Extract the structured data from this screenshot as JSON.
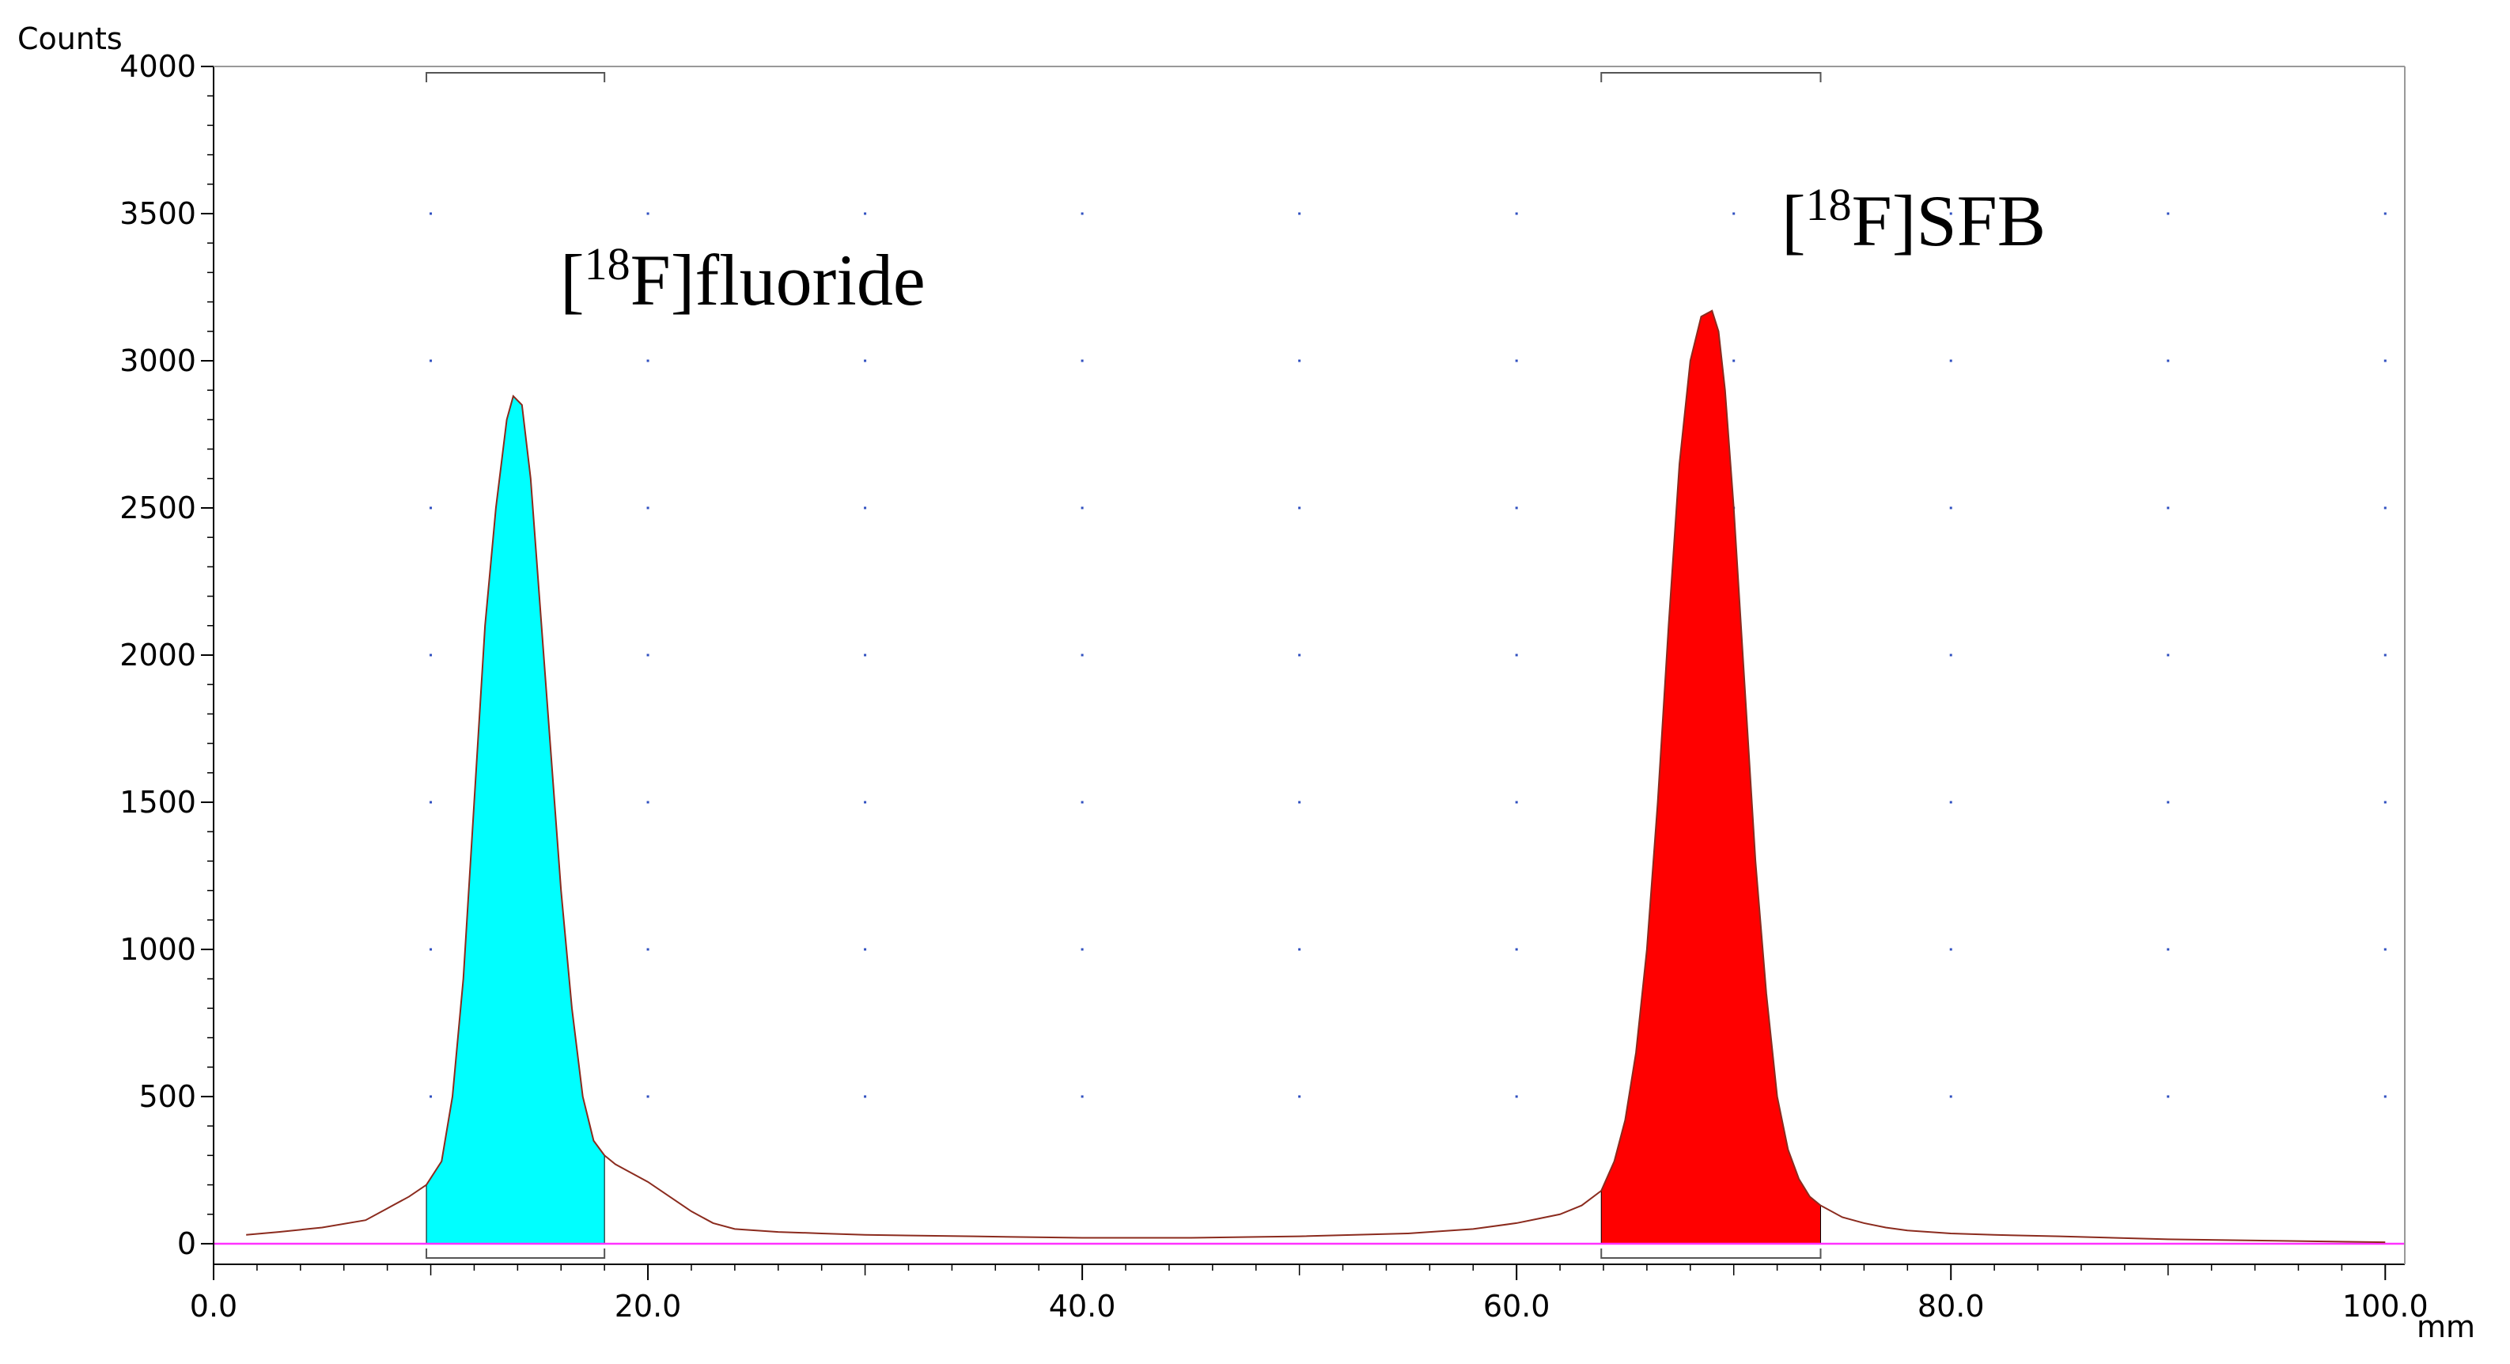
{
  "chart_data": {
    "type": "area",
    "title": "",
    "xlabel": "mm",
    "ylabel": "Counts",
    "xlim": [
      0,
      100.9
    ],
    "ylim": [
      -70,
      4000
    ],
    "x_ticks": [
      0.0,
      20.0,
      40.0,
      60.0,
      80.0,
      100.0
    ],
    "x_tick_labels": [
      "0.0",
      "20.0",
      "40.0",
      "60.0",
      "80.0",
      "100.0"
    ],
    "y_ticks": [
      0,
      500,
      1000,
      1500,
      2000,
      2500,
      3000,
      3500,
      4000
    ],
    "y_tick_labels": [
      "0",
      "500",
      "1000",
      "1500",
      "2000",
      "2500",
      "3000",
      "3500",
      "4000"
    ],
    "grid": "dotted",
    "colors": {
      "trace": "#8b2b1e",
      "baseline": "#ff33ff",
      "peak1": "#00ffff",
      "peak2": "#ff0000",
      "axis": "#000000",
      "grid": "#3050c0"
    },
    "trace": {
      "x": [
        1.5,
        3,
        5,
        7,
        8,
        9,
        9.8,
        10.5,
        11,
        11.5,
        12,
        12.5,
        13,
        13.5,
        13.8,
        14.2,
        14.6,
        15,
        15.5,
        16,
        16.5,
        17,
        17.5,
        18,
        18.5,
        19,
        20,
        21,
        22,
        23,
        24,
        26,
        28,
        30,
        35,
        40,
        45,
        50,
        55,
        58,
        60,
        61,
        62,
        63,
        63.9,
        64.5,
        65,
        65.5,
        66,
        66.5,
        67,
        67.5,
        68,
        68.5,
        69,
        69.3,
        69.6,
        70,
        70.5,
        71,
        71.5,
        72,
        72.5,
        73,
        73.5,
        74,
        75,
        76,
        77,
        78,
        80,
        82,
        85,
        90,
        95,
        100
      ],
      "y": [
        30,
        40,
        55,
        80,
        120,
        160,
        200,
        280,
        500,
        900,
        1500,
        2100,
        2500,
        2800,
        2880,
        2850,
        2600,
        2200,
        1700,
        1200,
        800,
        500,
        350,
        300,
        270,
        250,
        210,
        160,
        110,
        70,
        50,
        40,
        35,
        30,
        25,
        20,
        20,
        25,
        35,
        50,
        70,
        85,
        100,
        130,
        180,
        280,
        420,
        650,
        1000,
        1500,
        2100,
        2650,
        3000,
        3150,
        3170,
        3100,
        2900,
        2500,
        1900,
        1300,
        850,
        500,
        320,
        220,
        160,
        130,
        90,
        70,
        55,
        45,
        35,
        30,
        25,
        15,
        10,
        5
      ]
    },
    "series": [
      {
        "name": "[18F]fluoride",
        "x_range": [
          9.8,
          18.0
        ],
        "color": "#00ffff"
      },
      {
        "name": "[18F]SFB",
        "x_range": [
          63.9,
          74.0
        ],
        "color": "#ff0000"
      }
    ],
    "annotations": [
      {
        "bracket": "[",
        "sup": "18",
        "text": "F]fluoride"
      },
      {
        "bracket": "[",
        "sup": "18",
        "text": "F]SFB"
      }
    ]
  }
}
